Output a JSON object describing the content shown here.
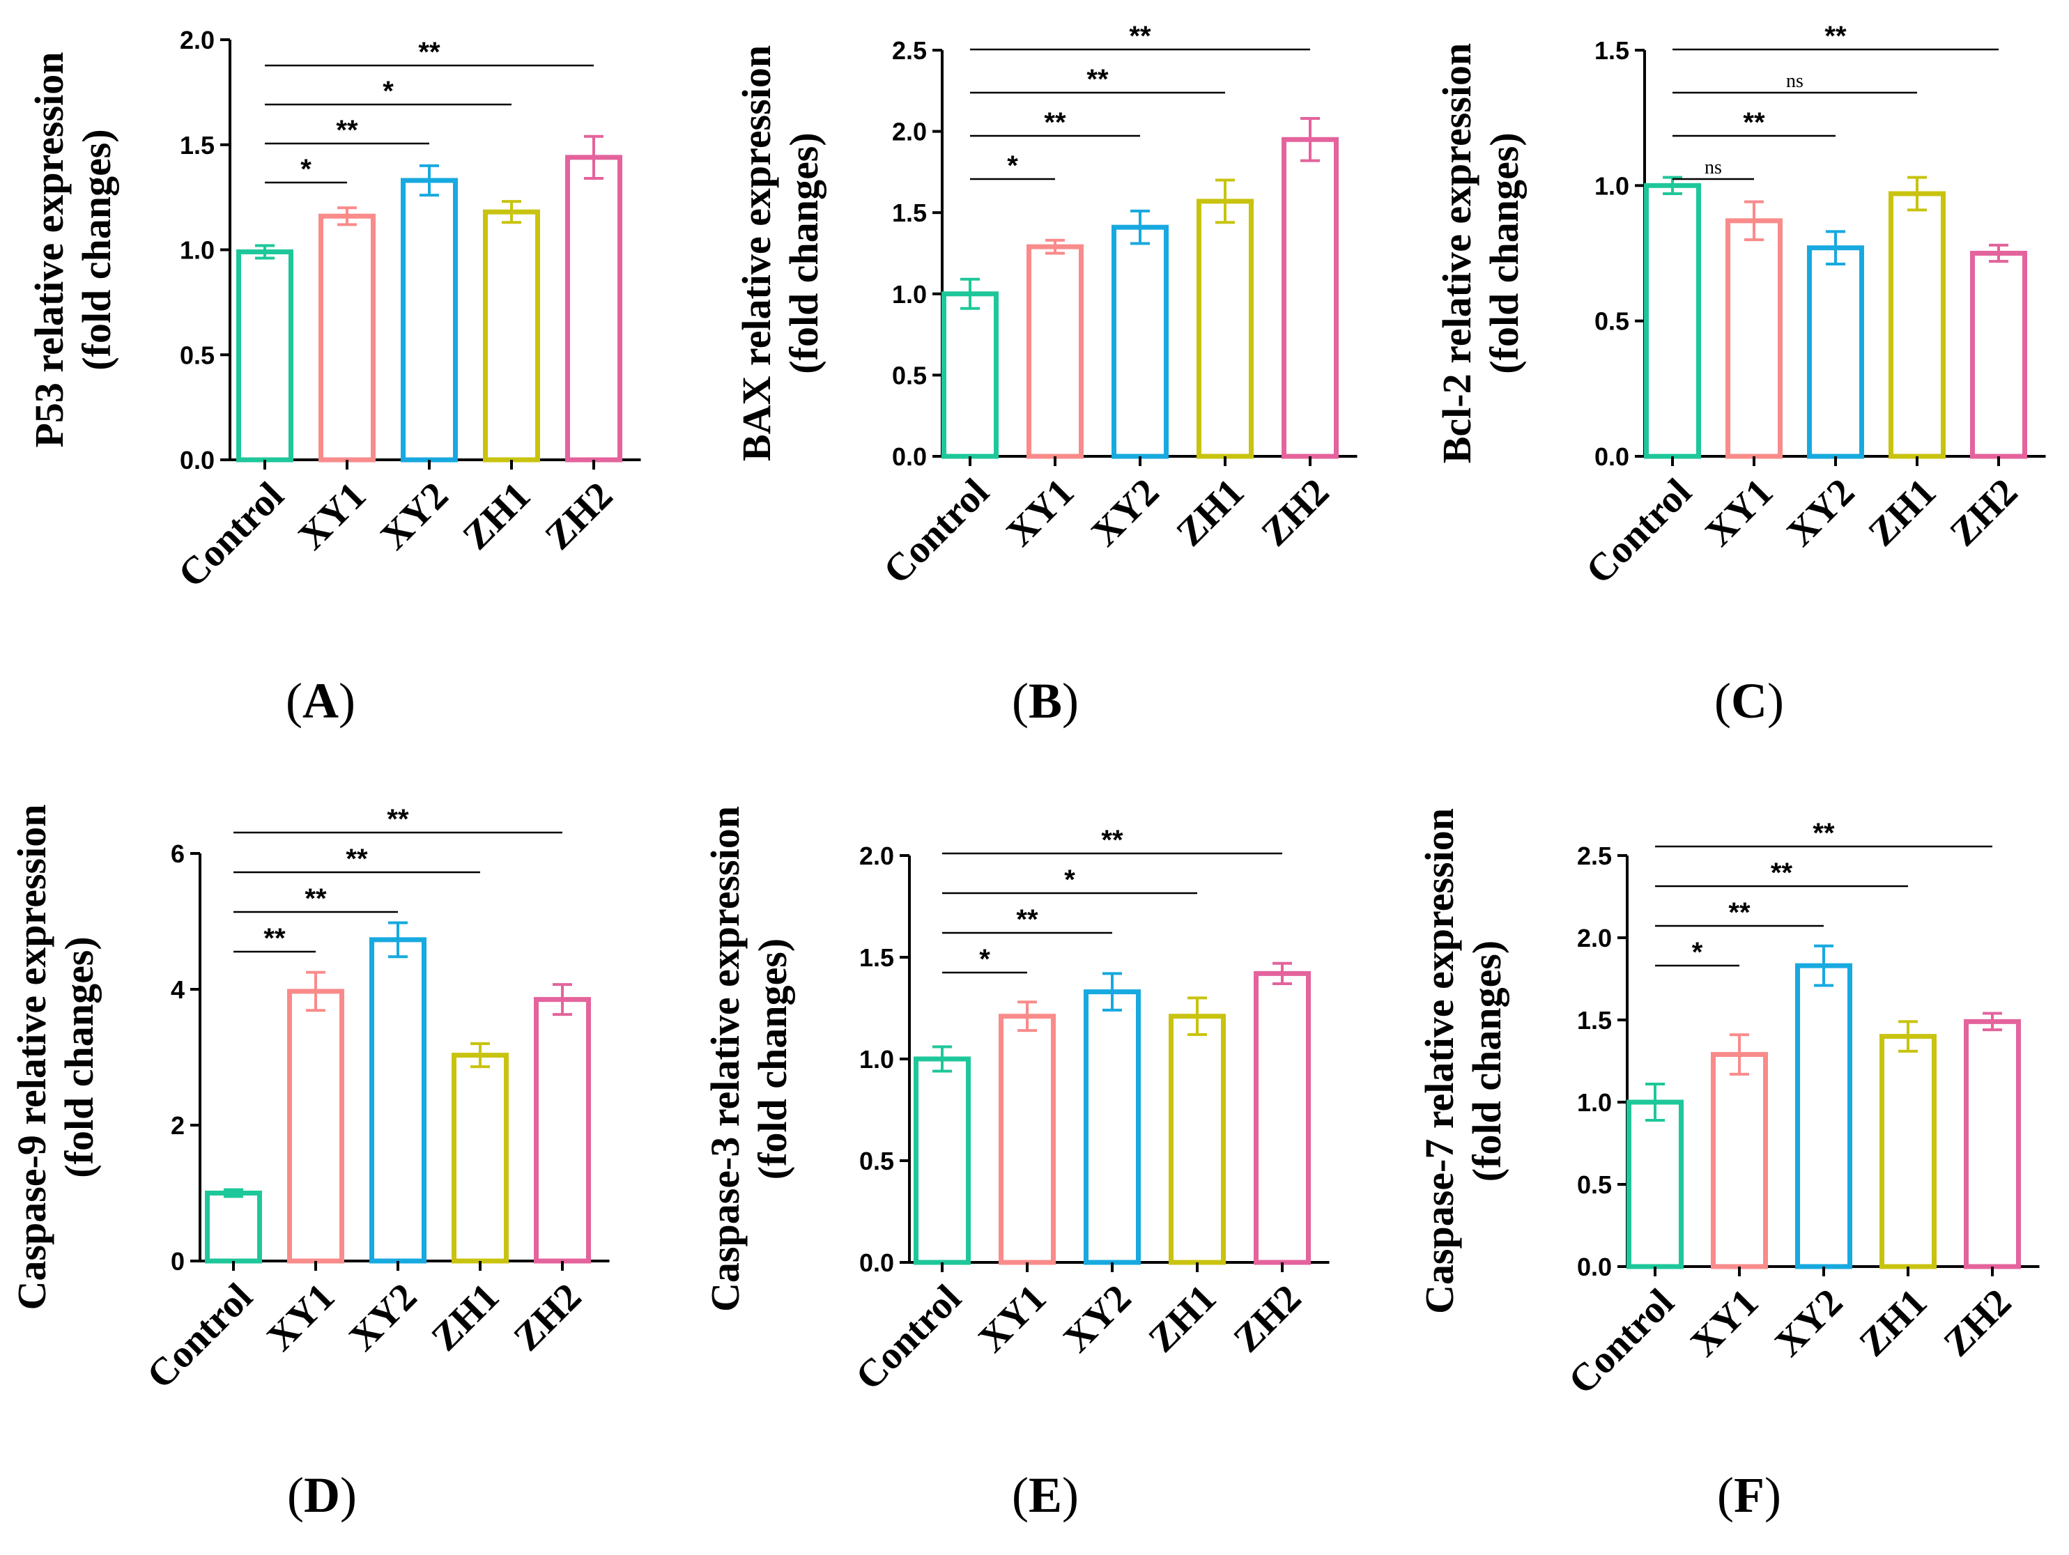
{
  "colors": {
    "Control": "#1ec79a",
    "XY1": "#f98b8b",
    "XY2": "#17a9df",
    "ZH1": "#c8c30f",
    "ZH2": "#e4639c"
  },
  "chart_data": [
    {
      "id": "A",
      "type": "bar",
      "panel_label": "A",
      "ylabel_line1": "P53 relative expression",
      "ylabel_line2": "(fold changes)",
      "ylim": [
        0,
        2.0
      ],
      "yticks": [
        "0.0",
        "0.5",
        "1.0",
        "1.5",
        "2.0"
      ],
      "categories": [
        "Control",
        "XY1",
        "XY2",
        "ZH1",
        "ZH2"
      ],
      "values": [
        0.99,
        1.16,
        1.33,
        1.18,
        1.44
      ],
      "errors": [
        0.03,
        0.04,
        0.07,
        0.05,
        0.1
      ],
      "comparisons": [
        {
          "from": 0,
          "to": 1,
          "label": "*"
        },
        {
          "from": 0,
          "to": 2,
          "label": "**"
        },
        {
          "from": 0,
          "to": 3,
          "label": "*"
        },
        {
          "from": 0,
          "to": 4,
          "label": "**"
        }
      ]
    },
    {
      "id": "B",
      "type": "bar",
      "panel_label": "B",
      "ylabel_line1": "BAX relative expression",
      "ylabel_line2": "(fold changes)",
      "ylim": [
        0,
        2.5
      ],
      "yticks": [
        "0.0",
        "0.5",
        "1.0",
        "1.5",
        "2.0",
        "2.5"
      ],
      "categories": [
        "Control",
        "XY1",
        "XY2",
        "ZH1",
        "ZH2"
      ],
      "values": [
        1.0,
        1.29,
        1.41,
        1.57,
        1.95
      ],
      "errors": [
        0.09,
        0.04,
        0.1,
        0.13,
        0.13
      ],
      "comparisons": [
        {
          "from": 0,
          "to": 1,
          "label": "*"
        },
        {
          "from": 0,
          "to": 2,
          "label": "**"
        },
        {
          "from": 0,
          "to": 3,
          "label": "**"
        },
        {
          "from": 0,
          "to": 4,
          "label": "**"
        }
      ]
    },
    {
      "id": "C",
      "type": "bar",
      "panel_label": "C",
      "ylabel_line1": "Bcl-2 relative expression",
      "ylabel_line2": "(fold changes)",
      "ylim": [
        0,
        1.5
      ],
      "yticks": [
        "0.0",
        "0.5",
        "1.0",
        "1.5"
      ],
      "categories": [
        "Control",
        "XY1",
        "XY2",
        "ZH1",
        "ZH2"
      ],
      "values": [
        1.0,
        0.87,
        0.77,
        0.97,
        0.75
      ],
      "errors": [
        0.03,
        0.07,
        0.06,
        0.06,
        0.03
      ],
      "comparisons": [
        {
          "from": 0,
          "to": 1,
          "label": "ns"
        },
        {
          "from": 0,
          "to": 2,
          "label": "**"
        },
        {
          "from": 0,
          "to": 3,
          "label": "ns"
        },
        {
          "from": 0,
          "to": 4,
          "label": "**"
        }
      ]
    },
    {
      "id": "D",
      "type": "bar",
      "panel_label": "D",
      "ylabel_line1": "Caspase-9 relative expression",
      "ylabel_line2": "(fold changes)",
      "ylim": [
        0,
        6
      ],
      "yticks": [
        "0",
        "2",
        "4",
        "6"
      ],
      "categories": [
        "Control",
        "XY1",
        "XY2",
        "ZH1",
        "ZH2"
      ],
      "values": [
        1.0,
        3.97,
        4.73,
        3.03,
        3.85
      ],
      "errors": [
        0.05,
        0.28,
        0.25,
        0.17,
        0.22
      ],
      "comparisons": [
        {
          "from": 0,
          "to": 1,
          "label": "**"
        },
        {
          "from": 0,
          "to": 2,
          "label": "**"
        },
        {
          "from": 0,
          "to": 3,
          "label": "**"
        },
        {
          "from": 0,
          "to": 4,
          "label": "**"
        }
      ]
    },
    {
      "id": "E",
      "type": "bar",
      "panel_label": "E",
      "ylabel_line1": "Caspase-3 relative expression",
      "ylabel_line2": "(fold changes)",
      "ylim": [
        0,
        2.0
      ],
      "yticks": [
        "0.0",
        "0.5",
        "1.0",
        "1.5",
        "2.0"
      ],
      "categories": [
        "Control",
        "XY1",
        "XY2",
        "ZH1",
        "ZH2"
      ],
      "values": [
        1.0,
        1.21,
        1.33,
        1.21,
        1.42
      ],
      "errors": [
        0.06,
        0.07,
        0.09,
        0.09,
        0.05
      ],
      "comparisons": [
        {
          "from": 0,
          "to": 1,
          "label": "*"
        },
        {
          "from": 0,
          "to": 2,
          "label": "**"
        },
        {
          "from": 0,
          "to": 3,
          "label": "*"
        },
        {
          "from": 0,
          "to": 4,
          "label": "**"
        }
      ]
    },
    {
      "id": "F",
      "type": "bar",
      "panel_label": "F",
      "ylabel_line1": "Caspase-7 relative expression",
      "ylabel_line2": "(fold changes)",
      "ylim": [
        0,
        2.5
      ],
      "yticks": [
        "0.0",
        "0.5",
        "1.0",
        "1.5",
        "2.0",
        "2.5"
      ],
      "categories": [
        "Control",
        "XY1",
        "XY2",
        "ZH1",
        "ZH2"
      ],
      "values": [
        1.0,
        1.29,
        1.83,
        1.4,
        1.49
      ],
      "errors": [
        0.11,
        0.12,
        0.12,
        0.09,
        0.05
      ],
      "comparisons": [
        {
          "from": 0,
          "to": 1,
          "label": "*"
        },
        {
          "from": 0,
          "to": 2,
          "label": "**"
        },
        {
          "from": 0,
          "to": 3,
          "label": "**"
        },
        {
          "from": 0,
          "to": 4,
          "label": "**"
        }
      ]
    }
  ]
}
